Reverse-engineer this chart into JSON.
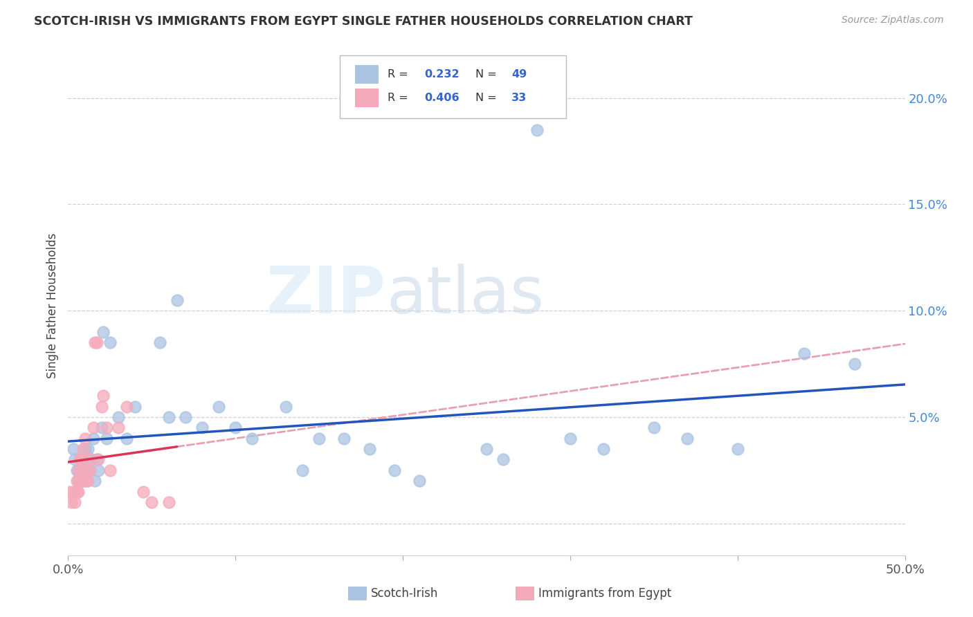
{
  "title": "SCOTCH-IRISH VS IMMIGRANTS FROM EGYPT SINGLE FATHER HOUSEHOLDS CORRELATION CHART",
  "source": "Source: ZipAtlas.com",
  "ylabel": "Single Father Households",
  "xlim": [
    0.0,
    50.0
  ],
  "ylim": [
    -1.5,
    22.0
  ],
  "yticks": [
    0.0,
    5.0,
    10.0,
    15.0,
    20.0
  ],
  "xticks": [
    0.0,
    10.0,
    20.0,
    30.0,
    40.0,
    50.0
  ],
  "scotch_irish_color": "#aac4e2",
  "egypt_color": "#f5aabb",
  "scotch_irish_line_color": "#2255bb",
  "egypt_line_color": "#dd3355",
  "trend_dash_color": "#e8a0b0",
  "legend_R_scotch": "0.232",
  "legend_N_scotch": "49",
  "legend_R_egypt": "0.406",
  "legend_N_egypt": "33",
  "background_color": "#ffffff",
  "grid_color": "#cccccc",
  "watermark_zip": "ZIP",
  "watermark_atlas": "atlas",
  "scotch_irish_x": [
    0.3,
    0.4,
    0.5,
    0.6,
    0.7,
    0.8,
    0.9,
    1.0,
    1.0,
    1.1,
    1.2,
    1.3,
    1.4,
    1.5,
    1.6,
    1.7,
    1.8,
    2.0,
    2.1,
    2.3,
    2.5,
    3.0,
    3.5,
    4.0,
    5.5,
    6.0,
    6.5,
    7.0,
    8.0,
    9.0,
    10.0,
    11.0,
    13.0,
    14.0,
    15.0,
    16.5,
    18.0,
    19.5,
    21.0,
    25.0,
    26.0,
    28.0,
    30.0,
    32.0,
    35.0,
    37.0,
    40.0,
    44.0,
    47.0
  ],
  "scotch_irish_y": [
    3.5,
    3.0,
    2.5,
    2.0,
    2.5,
    3.0,
    2.0,
    2.5,
    3.5,
    2.0,
    3.5,
    2.5,
    3.0,
    4.0,
    2.0,
    3.0,
    2.5,
    4.5,
    9.0,
    4.0,
    8.5,
    5.0,
    4.0,
    5.5,
    8.5,
    5.0,
    10.5,
    5.0,
    4.5,
    5.5,
    4.5,
    4.0,
    5.5,
    2.5,
    4.0,
    4.0,
    3.5,
    2.5,
    2.0,
    3.5,
    3.0,
    18.5,
    4.0,
    3.5,
    4.5,
    4.0,
    3.5,
    8.0,
    7.5
  ],
  "egypt_x": [
    0.1,
    0.2,
    0.3,
    0.4,
    0.5,
    0.5,
    0.6,
    0.6,
    0.7,
    0.7,
    0.8,
    0.8,
    0.9,
    0.9,
    1.0,
    1.0,
    1.1,
    1.2,
    1.3,
    1.3,
    1.5,
    1.6,
    1.7,
    1.8,
    2.0,
    2.1,
    2.3,
    2.5,
    3.0,
    3.5,
    4.5,
    5.0,
    6.0
  ],
  "egypt_y": [
    1.5,
    1.0,
    1.5,
    1.0,
    2.0,
    1.5,
    1.5,
    2.5,
    2.0,
    3.0,
    2.0,
    3.0,
    2.5,
    3.5,
    2.0,
    4.0,
    2.5,
    2.0,
    3.0,
    2.5,
    4.5,
    8.5,
    8.5,
    3.0,
    5.5,
    6.0,
    4.5,
    2.5,
    4.5,
    5.5,
    1.5,
    1.0,
    1.0
  ]
}
